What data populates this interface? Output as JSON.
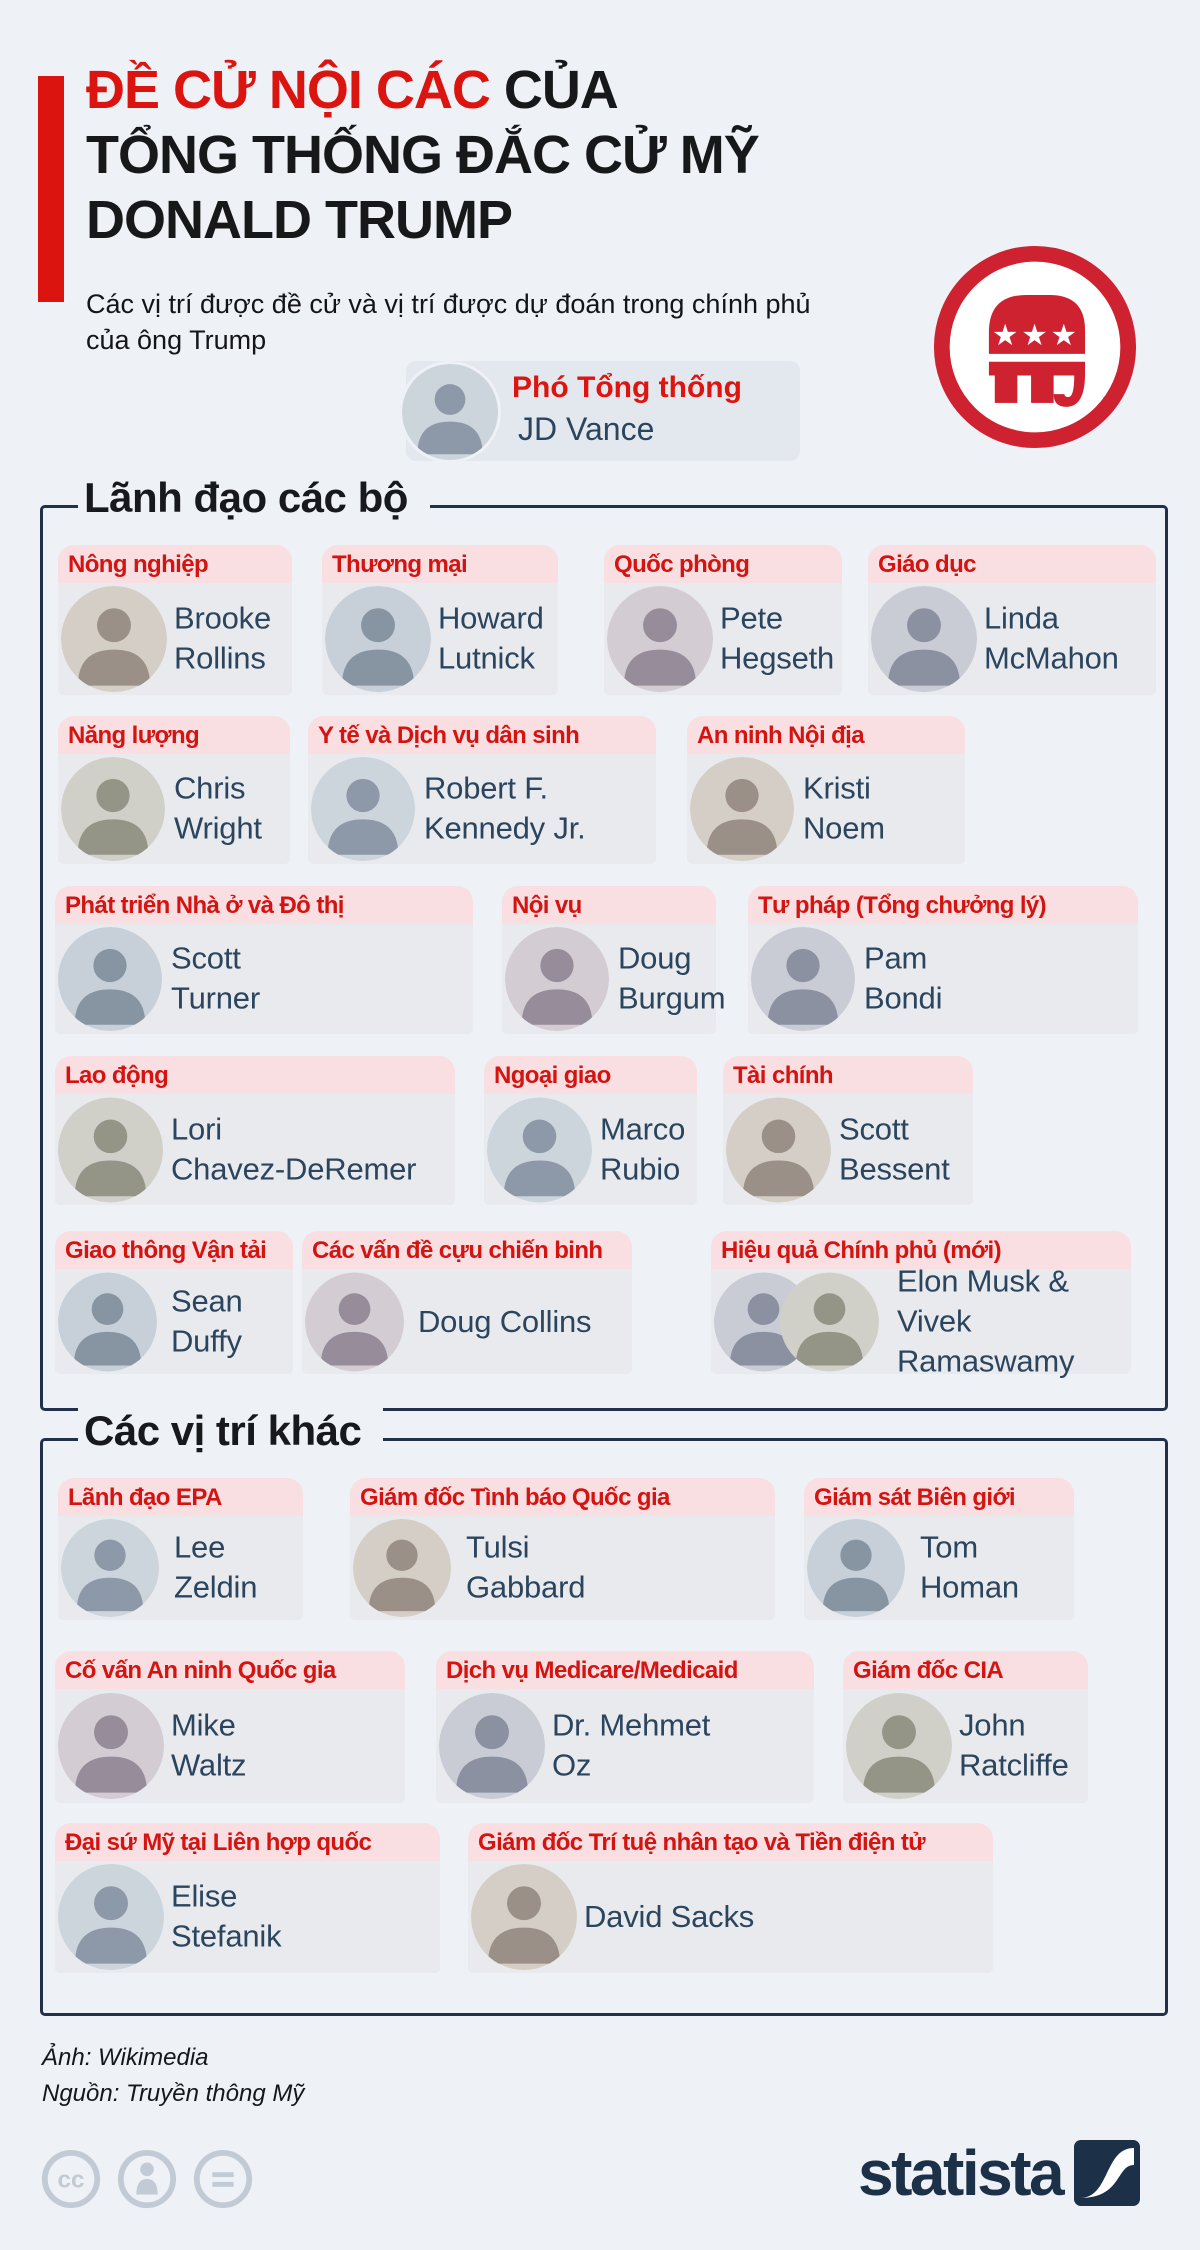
{
  "colors": {
    "page_bg": "#eef1f5",
    "accent_red": "#dc1410",
    "category_red": "#d41410",
    "card_header_bg": "#f9dee2",
    "card_body_bg": "#e9eaee",
    "name_navy": "#2b455e",
    "section_border_navy": "#22304a",
    "brand_navy": "#1c3048",
    "elephant_red": "#cf2231"
  },
  "header": {
    "title_line1_red": "ĐỀ CỬ NỘI CÁC",
    "title_line1_black": " CỦA",
    "title_line2": "TỔNG THỐNG ĐẮC CỬ MỸ",
    "title_line3": "DONALD TRUMP",
    "subtitle": "Các vị trí được đề cử và vị trí được dự đoán trong chính phủ\ncủa ông Trump"
  },
  "vp": {
    "role": "Phó Tổng thống",
    "name": "JD Vance"
  },
  "icons": {
    "logo": "republican-elephant-logo",
    "license": [
      "cc-icon",
      "attribution-icon",
      "nd-icon"
    ],
    "brand_mark": "statista-logo-mark"
  },
  "sections": [
    {
      "title": "Lãnh đạo các bộ",
      "rows": [
        {
          "cards": [
            {
              "role": "Nông nghiệp",
              "name": "Brooke\nRollins"
            },
            {
              "role": "Thương mại",
              "name": "Howard\nLutnick"
            },
            {
              "role": "Quốc phòng",
              "name": "Pete\nHegseth"
            },
            {
              "role": "Giáo dục",
              "name": "Linda\nMcMahon"
            }
          ]
        },
        {
          "cards": [
            {
              "role": "Năng lượng",
              "name": "Chris\nWright"
            },
            {
              "role": "Y tế và Dịch vụ dân sinh",
              "name": "Robert F.\nKennedy Jr."
            },
            {
              "role": "An ninh Nội địa",
              "name": "Kristi\nNoem"
            }
          ]
        },
        {
          "cards": [
            {
              "role": "Phát triển Nhà ở và Đô thị",
              "name": "Scott\nTurner"
            },
            {
              "role": "Nội vụ",
              "name": "Doug\nBurgum"
            },
            {
              "role": "Tư pháp (Tổng chưởng lý)",
              "name": "Pam\nBondi"
            }
          ]
        },
        {
          "cards": [
            {
              "role": "Lao động",
              "name": "Lori\nChavez-DeRemer"
            },
            {
              "role": "Ngoại giao",
              "name": "Marco\nRubio"
            },
            {
              "role": "Tài chính",
              "name": "Scott\nBessent"
            }
          ]
        },
        {
          "cards": [
            {
              "role": "Giao thông Vận tải",
              "name": "Sean\nDuffy"
            },
            {
              "role": "Các vấn đề cựu chiến binh",
              "name": "Doug Collins"
            },
            {
              "role": "Hiệu quả Chính phủ (mới)",
              "name": "Elon Musk &\nVivek Ramaswamy",
              "dual": true
            }
          ]
        }
      ]
    },
    {
      "title": "Các vị trí khác",
      "rows": [
        {
          "cards": [
            {
              "role": "Lãnh đạo EPA",
              "name": "Lee\nZeldin"
            },
            {
              "role": "Giám đốc Tình báo Quốc gia",
              "name": "Tulsi\nGabbard"
            },
            {
              "role": "Giám sát Biên giới",
              "name": "Tom\nHoman"
            }
          ]
        },
        {
          "cards": [
            {
              "role": "Cố vấn An ninh Quốc gia",
              "name": "Mike\nWaltz"
            },
            {
              "role": "Dịch vụ Medicare/Medicaid",
              "name": "Dr. Mehmet\nOz"
            },
            {
              "role": "Giám đốc CIA",
              "name": "John\nRatcliffe"
            }
          ]
        },
        {
          "cards": [
            {
              "role": "Đại sứ Mỹ tại Liên hợp quốc",
              "name": "Elise\nStefanik"
            },
            {
              "role": "Giám đốc Trí tuệ nhân tạo và Tiền điện tử",
              "name": "David Sacks"
            }
          ]
        }
      ]
    }
  ],
  "footer": {
    "photo_credit": "Ảnh: Wikimedia",
    "source_credit": "Nguồn: Truyền thông Mỹ",
    "brand": "statista"
  }
}
